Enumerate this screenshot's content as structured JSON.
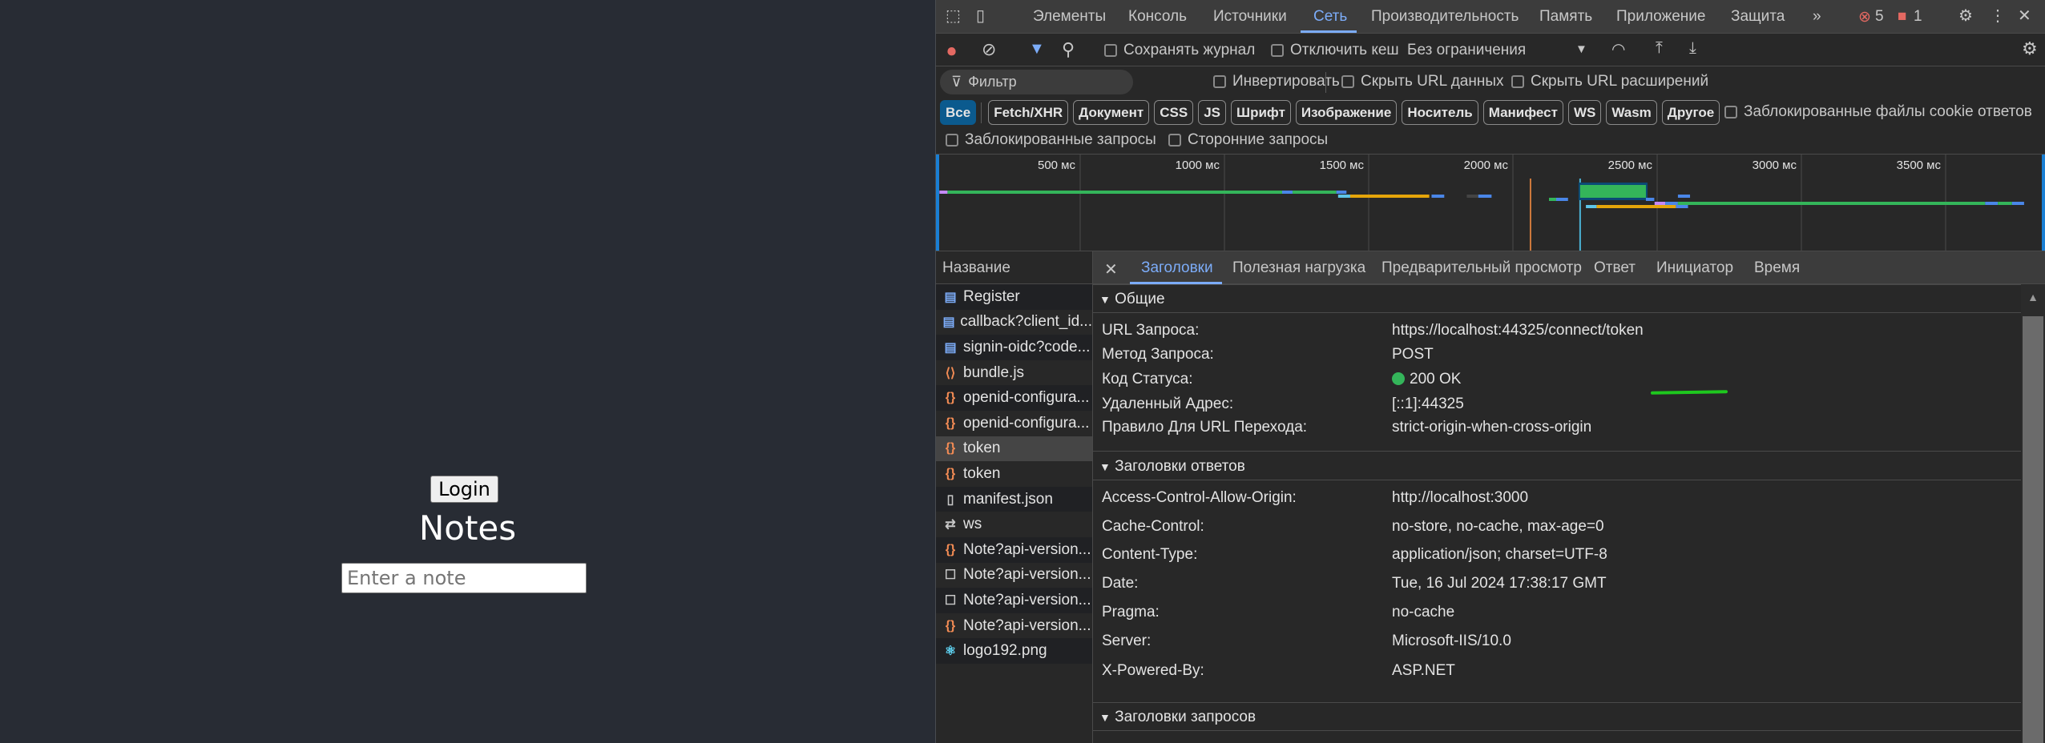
{
  "app": {
    "login_label": "Login",
    "title": "Notes",
    "note_placeholder": "Enter a note"
  },
  "devtools": {
    "tabs": [
      "Элементы",
      "Консоль",
      "Источники",
      "Сеть",
      "Производительность",
      "Память",
      "Приложение",
      "Защита"
    ],
    "active_tab": "Сеть",
    "more": "»",
    "errors": "5",
    "issues": "1",
    "toolbar": {
      "preserve_log": "Сохранять журнал",
      "disable_cache": "Отключить кеш",
      "throttling": "Без ограничения"
    },
    "filter": {
      "placeholder": "Фильтр",
      "invert": "Инвертировать",
      "hide_data_urls": "Скрыть URL данных",
      "hide_ext_urls": "Скрыть URL расширений"
    },
    "types": [
      "Все",
      "Fetch/XHR",
      "Документ",
      "CSS",
      "JS",
      "Шрифт",
      "Изображение",
      "Носитель",
      "Манифест",
      "WS",
      "Wasm",
      "Другое"
    ],
    "active_type": "Все",
    "blocked_cookies": "Заблокированные файлы cookie ответов",
    "blocked_requests": "Заблокированные запросы",
    "third_party": "Сторонние запросы",
    "timeline": {
      "ticks": [
        "500 мс",
        "1000 мс",
        "1500 мс",
        "2000 мс",
        "2500 мс",
        "3000 мс",
        "3500 мс"
      ],
      "tick_values_ms": [
        500,
        1000,
        1500,
        2000,
        2500,
        3000,
        3500
      ],
      "range_ms": [
        0,
        3844
      ],
      "markers_ms": [
        {
          "t": 2061,
          "color": "#d07a3c"
        },
        {
          "t": 2233,
          "color": "#4bb3d6"
        }
      ],
      "bars": [
        {
          "lane": 0,
          "segs": [
            [
              12,
              40,
              "#c58af9"
            ],
            [
              40,
              1200,
              "#34b55a"
            ],
            [
              1200,
              1236,
              "#4a86e8"
            ],
            [
              1236,
              1388,
              "#34b55a"
            ],
            [
              1388,
              1423,
              "#4a86e8"
            ]
          ]
        },
        {
          "lane": 1,
          "segs": [
            [
              1394,
              1436,
              "#5ec5e8"
            ],
            [
              1436,
              1710,
              "#e5a50a"
            ],
            [
              1718,
              1762,
              "#4a86e8"
            ]
          ]
        },
        {
          "lane": 1,
          "segs": [
            [
              1840,
              1880,
              "#444444"
            ],
            [
              1880,
              1926,
              "#4a86e8"
            ]
          ]
        },
        {
          "lane": 2,
          "segs": [
            [
              2125,
              2150,
              "#34b55a"
            ],
            [
              2150,
              2191,
              "#4a86e8"
            ]
          ]
        },
        {
          "lane": 0,
          "big": true,
          "segs": [
            [
              2233,
              2461,
              "#34b55a"
            ]
          ]
        },
        {
          "lane": 2,
          "segs": [
            [
              2461,
              2490,
              "#4a86e8"
            ]
          ]
        },
        {
          "lane": 1,
          "segs": [
            [
              2572,
              2614,
              "#4a86e8"
            ]
          ]
        },
        {
          "lane": 3,
          "segs": [
            [
              2491,
              2528,
              "#c58af9"
            ],
            [
              2528,
              2572,
              "#4a86e8"
            ],
            [
              2572,
              3637,
              "#34b55a"
            ],
            [
              3637,
              3681,
              "#4a86e8"
            ],
            [
              3681,
              3730,
              "#34b55a"
            ],
            [
              3730,
              3772,
              "#4a86e8"
            ]
          ]
        },
        {
          "lane": 4,
          "segs": [
            [
              2253,
              2290,
              "#5ec5e8"
            ],
            [
              2290,
              2565,
              "#e5a50a"
            ],
            [
              2565,
              2607,
              "#4a86e8"
            ]
          ]
        }
      ]
    },
    "name_header": "Название",
    "requests": [
      {
        "name": "Register",
        "icon": "document-icon"
      },
      {
        "name": "callback?client_id...",
        "icon": "document-icon"
      },
      {
        "name": "signin-oidc?code...",
        "icon": "document-icon"
      },
      {
        "name": "bundle.js",
        "icon": "script-icon"
      },
      {
        "name": "openid-configura...",
        "icon": "fetch-icon"
      },
      {
        "name": "openid-configura...",
        "icon": "fetch-icon"
      },
      {
        "name": "token",
        "icon": "fetch-icon",
        "selected": true
      },
      {
        "name": "token",
        "icon": "fetch-icon"
      },
      {
        "name": "manifest.json",
        "icon": "file-icon"
      },
      {
        "name": "ws",
        "icon": "websocket-icon"
      },
      {
        "name": "Note?api-version...",
        "icon": "fetch-icon"
      },
      {
        "name": "Note?api-version...",
        "icon": "pending-icon"
      },
      {
        "name": "Note?api-version...",
        "icon": "pending-icon"
      },
      {
        "name": "Note?api-version...",
        "icon": "fetch-icon"
      },
      {
        "name": "logo192.png",
        "icon": "react-icon"
      }
    ],
    "detail_tabs": [
      "Заголовки",
      "Полезная нагрузка",
      "Предварительный просмотр",
      "Ответ",
      "Инициатор",
      "Время"
    ],
    "general": {
      "title": "Общие",
      "rows": [
        {
          "k": "URL Запроса:",
          "v": "https://localhost:44325/connect/token"
        },
        {
          "k": "Метод Запроса:",
          "v": "POST"
        },
        {
          "k": "Код Статуса:",
          "v": "200 OK"
        },
        {
          "k": "Удаленный Адрес:",
          "v": "[::1]:44325"
        },
        {
          "k": "Правило Для URL Перехода:",
          "v": "strict-origin-when-cross-origin"
        }
      ]
    },
    "response_headers": {
      "title": "Заголовки ответов",
      "rows": [
        {
          "k": "Access-Control-Allow-Origin:",
          "v": "http://localhost:3000"
        },
        {
          "k": "Cache-Control:",
          "v": "no-store, no-cache, max-age=0"
        },
        {
          "k": "Content-Type:",
          "v": "application/json; charset=UTF-8"
        },
        {
          "k": "Date:",
          "v": "Tue, 16 Jul 2024 17:38:17 GMT"
        },
        {
          "k": "Pragma:",
          "v": "no-cache"
        },
        {
          "k": "Server:",
          "v": "Microsoft-IIS/10.0"
        },
        {
          "k": "X-Powered-By:",
          "v": "ASP.NET"
        }
      ]
    },
    "request_headers": {
      "title": "Заголовки запросов"
    },
    "colors": {
      "accent": "#7cacf8",
      "status_ok": "#34b55a",
      "error": "#e46962"
    }
  }
}
